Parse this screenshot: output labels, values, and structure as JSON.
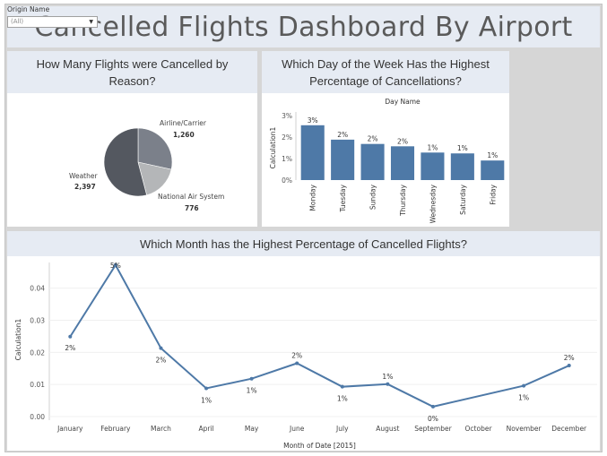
{
  "dashboard": {
    "title": "Cancelled Flights Dashboard By Airport",
    "filter": {
      "label": "Origin Name",
      "selected": "(All)",
      "arrow_icon": "dropdown-arrow-icon"
    }
  },
  "panels": {
    "pie_title": "How Many Flights were Cancelled by Reason?",
    "bar_title": "Which Day of the Week Has the Highest Percentage of Cancellations?",
    "line_title": "Which Month has the Highest Percentage of Cancelled Flights?"
  },
  "colors": {
    "bar": "#4e79a7",
    "line": "#4e79a7",
    "header_bg": "#e6ebf3",
    "frame": "#d6d6d6"
  },
  "chart_data": [
    {
      "type": "pie",
      "slices": [
        {
          "name": "Airline/Carrier",
          "value": 1260,
          "label": "1,260",
          "color": "#7b808a"
        },
        {
          "name": "National Air System",
          "value": 776,
          "label": "776",
          "color": "#b4b6b8"
        },
        {
          "name": "Weather",
          "value": 2397,
          "label": "2,397",
          "color": "#545860"
        }
      ]
    },
    {
      "type": "bar",
      "top_label": "Day Name",
      "ylabel": "Calculation1",
      "categories": [
        "Monday",
        "Tuesday",
        "Sunday",
        "Thursday",
        "Wednesday",
        "Saturday",
        "Friday"
      ],
      "values": [
        0.0255,
        0.0188,
        0.0168,
        0.0157,
        0.0128,
        0.0124,
        0.0091
      ],
      "data_labels": [
        "3%",
        "2%",
        "2%",
        "2%",
        "1%",
        "1%",
        "1%"
      ],
      "yticks": [
        "0%",
        "1%",
        "2%",
        "3%"
      ],
      "ytick_values": [
        0,
        0.01,
        0.02,
        0.03
      ],
      "ylim": [
        0,
        0.03
      ]
    },
    {
      "type": "line",
      "xlabel": "Month of Date [2015]",
      "ylabel": "Calculation1",
      "categories": [
        "January",
        "February",
        "March",
        "April",
        "May",
        "June",
        "July",
        "August",
        "September",
        "October",
        "November",
        "December"
      ],
      "values": [
        0.0249,
        0.0472,
        0.0213,
        0.0088,
        0.0118,
        0.0166,
        0.0093,
        0.0101,
        0.0031,
        null,
        0.0096,
        0.0159
      ],
      "data_labels": [
        "2%",
        "5%",
        "2%",
        "1%",
        "1%",
        "2%",
        "1%",
        "1%",
        "0%",
        "",
        "1%",
        "2%"
      ],
      "yticks": [
        "0.00",
        "0.01",
        "0.02",
        "0.03",
        "0.04"
      ],
      "ytick_values": [
        0,
        0.01,
        0.02,
        0.03,
        0.04
      ],
      "ylim": [
        0,
        0.048
      ]
    }
  ]
}
